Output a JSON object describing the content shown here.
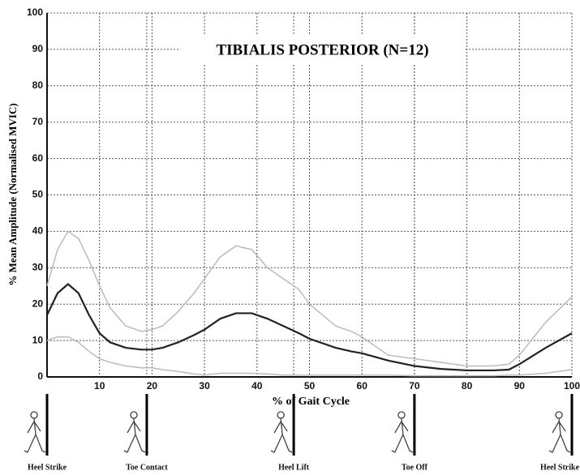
{
  "chart_data": {
    "type": "line",
    "title": "TIBIALIS POSTERIOR (N=12)",
    "x_label": "% of Gait Cycle",
    "y_label": "% Mean Amplitude (Normalised MVIC)",
    "x": [
      0,
      2,
      4,
      6,
      8,
      10,
      12,
      15,
      18,
      20,
      22,
      25,
      28,
      30,
      33,
      36,
      39,
      42,
      45,
      48,
      50,
      55,
      58,
      60,
      65,
      70,
      75,
      80,
      85,
      88,
      90,
      95,
      100
    ],
    "series": [
      {
        "color": "#bbbbbb",
        "values": [
          25,
          35,
          40,
          38,
          32,
          25,
          19,
          14,
          12.5,
          13,
          14,
          18,
          23,
          27,
          33,
          36,
          35,
          30,
          27,
          24,
          20,
          14,
          12.5,
          11,
          6,
          5,
          4,
          3,
          3,
          3.5,
          6,
          15,
          22
        ]
      },
      {
        "color": "#bbbbbb",
        "values": [
          10,
          11,
          11,
          9.5,
          7,
          5,
          4,
          3,
          2.5,
          2.5,
          2,
          1.5,
          0.8,
          0.5,
          1,
          1,
          1,
          0.8,
          0.5,
          0.5,
          0.5,
          0.5,
          0.5,
          0.5,
          0.5,
          0.3,
          0.3,
          0.3,
          0.3,
          0.5,
          0.5,
          1,
          2
        ]
      },
      {
        "color": "#222222",
        "values": [
          17,
          23,
          25.5,
          23,
          17,
          12,
          9.5,
          8,
          7.5,
          7.5,
          8,
          9.5,
          11.5,
          13,
          16,
          17.5,
          17.5,
          16,
          14,
          12,
          10.5,
          8,
          7,
          6.5,
          4.5,
          3,
          2.2,
          1.8,
          1.8,
          2,
          3.5,
          8,
          12
        ]
      }
    ],
    "xlim": [
      0,
      100
    ],
    "ylim": [
      0,
      100
    ],
    "xticks": [
      10,
      20,
      30,
      40,
      50,
      60,
      70,
      80,
      90,
      100
    ],
    "yticks": [
      0,
      10,
      20,
      30,
      40,
      50,
      60,
      70,
      80,
      90,
      100
    ],
    "grid": true,
    "events": [
      {
        "label": "Heel Strike",
        "x": 0
      },
      {
        "label": "Toe Contact",
        "x": 19
      },
      {
        "label": "Heel Lift",
        "x": 47
      },
      {
        "label": "Toe Off",
        "x": 70
      },
      {
        "label": "Heel Strike",
        "x": 100
      }
    ]
  }
}
